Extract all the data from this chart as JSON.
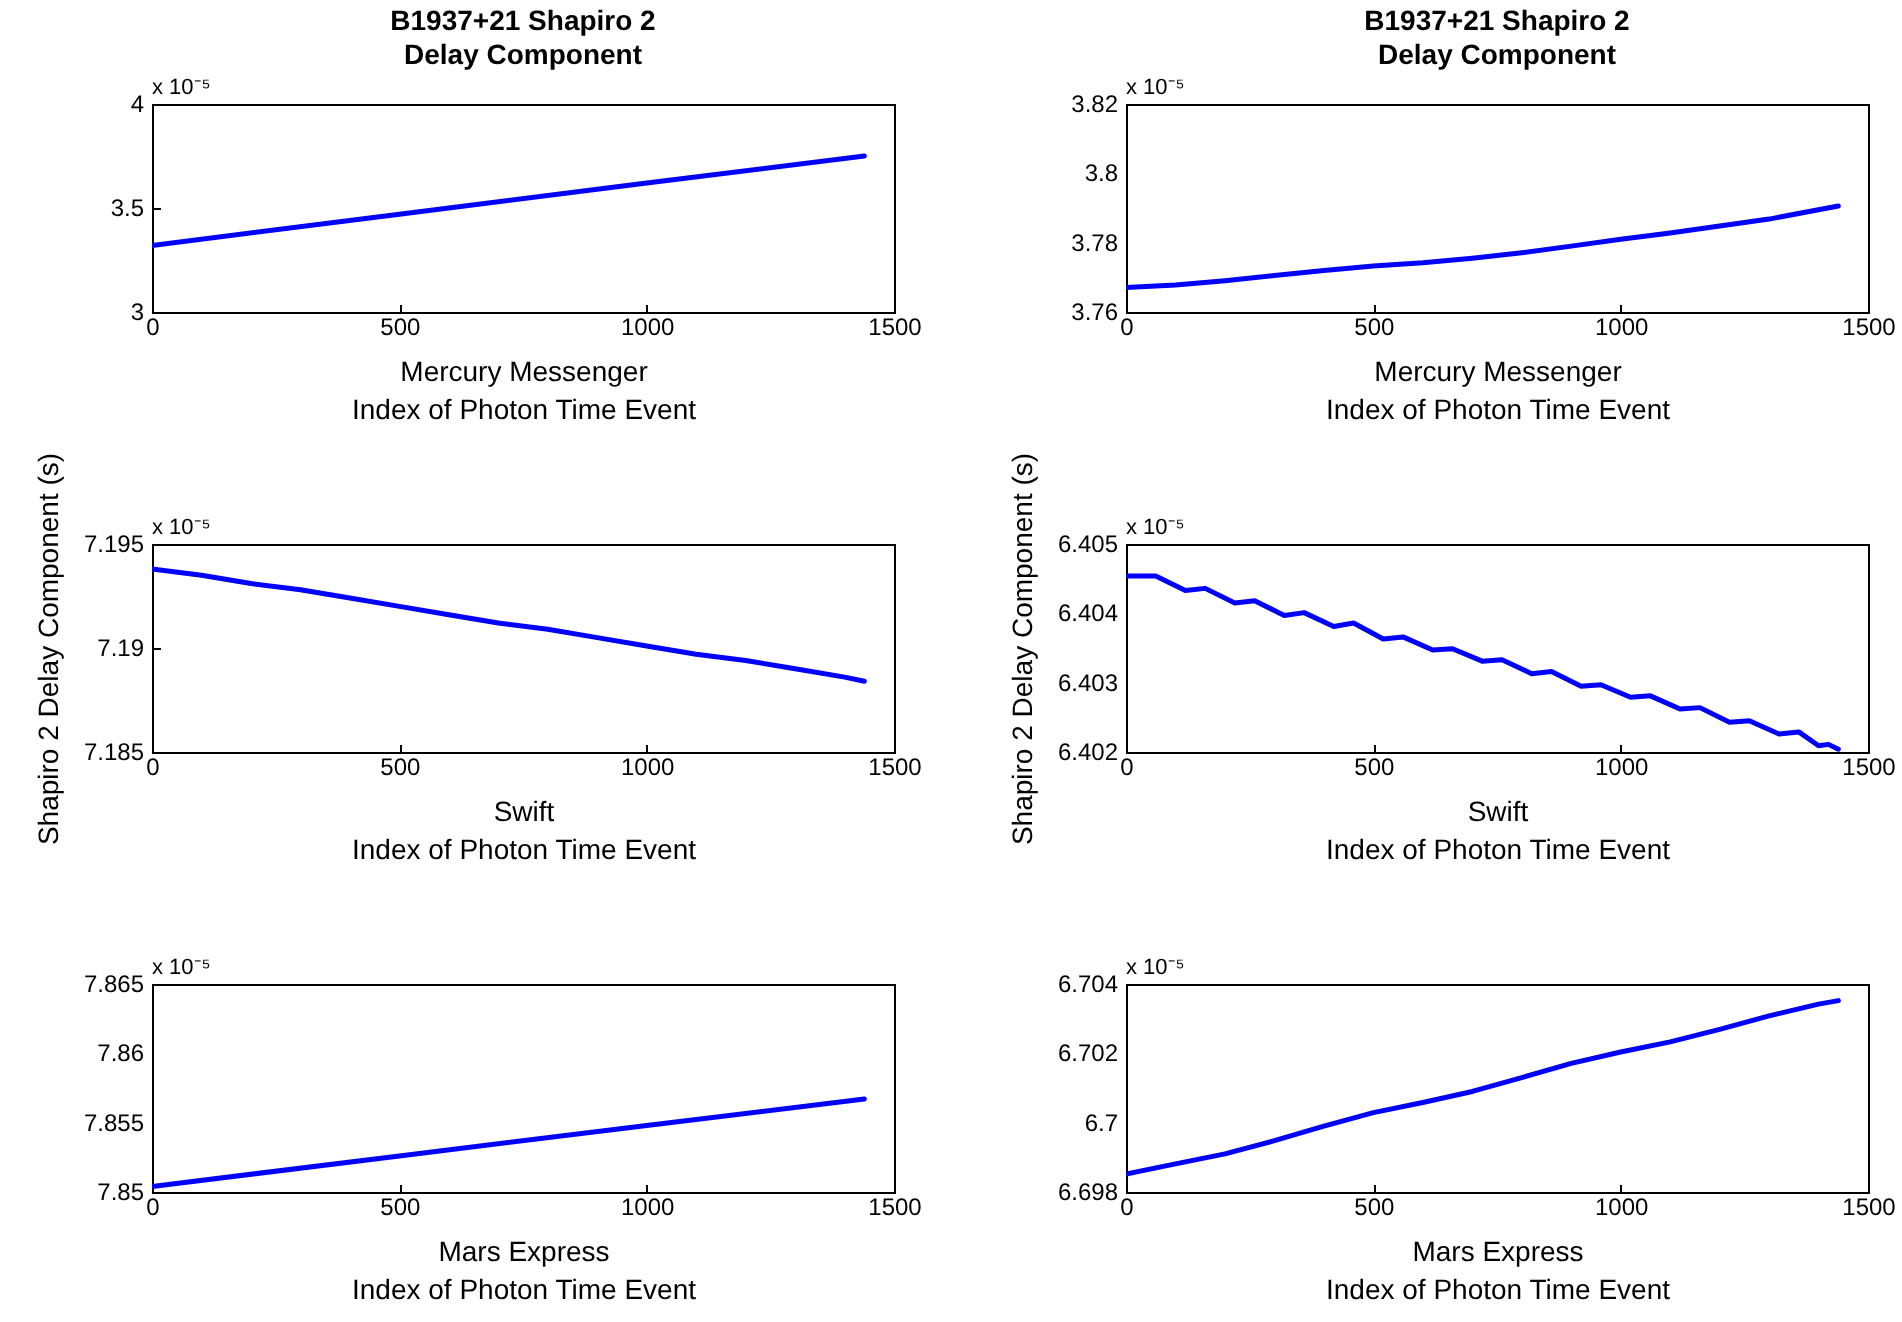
{
  "chart_data": [
    {
      "type": "line",
      "title": "B1937+21 Shapiro 2\nDelay Component",
      "xlabel": "Mercury Messenger\nIndex of Photon Time Event",
      "annotations": [
        "x 10⁻⁵"
      ],
      "color": "#0000ff",
      "xlim": [
        0,
        1500
      ],
      "xticks": [
        0,
        500,
        1000,
        1500
      ],
      "ylim": [
        3,
        4
      ],
      "yticks": [
        3,
        3.5,
        4
      ],
      "x": [
        0,
        500,
        1000,
        1440
      ],
      "values": [
        3.32,
        3.47,
        3.62,
        3.75
      ]
    },
    {
      "type": "line",
      "title": "B1937+21 Shapiro 2\nDelay Component",
      "xlabel": "Mercury Messenger\nIndex of Photon Time Event",
      "annotations": [
        "x 10⁻⁵"
      ],
      "color": "#0000ff",
      "xlim": [
        0,
        1500
      ],
      "xticks": [
        0,
        500,
        1000,
        1500
      ],
      "ylim": [
        3.76,
        3.82
      ],
      "yticks": [
        3.76,
        3.78,
        3.8,
        3.82
      ],
      "x": [
        0,
        100,
        200,
        300,
        400,
        500,
        600,
        700,
        800,
        900,
        1000,
        1100,
        1200,
        1300,
        1440
      ],
      "values": [
        3.7671,
        3.7678,
        3.769,
        3.7705,
        3.772,
        3.7733,
        3.7742,
        3.7755,
        3.7771,
        3.779,
        3.781,
        3.7828,
        3.7848,
        3.7868,
        3.7906
      ]
    },
    {
      "type": "line",
      "xlabel": "Swift\nIndex of Photon Time Event",
      "ylabel": "Shapiro 2 Delay Component (s)",
      "annotations": [
        "x 10⁻⁵"
      ],
      "color": "#0000ff",
      "xlim": [
        0,
        1500
      ],
      "xticks": [
        0,
        500,
        1000,
        1500
      ],
      "ylim": [
        7.185,
        7.195
      ],
      "yticks": [
        7.185,
        7.19,
        7.195
      ],
      "x": [
        0,
        100,
        200,
        300,
        400,
        500,
        600,
        700,
        800,
        900,
        1000,
        1100,
        1200,
        1300,
        1400,
        1440
      ],
      "values": [
        7.1938,
        7.1935,
        7.1931,
        7.1928,
        7.1924,
        7.192,
        7.1916,
        7.1912,
        7.1909,
        7.1905,
        7.1901,
        7.1897,
        7.1894,
        7.189,
        7.1886,
        7.1884
      ]
    },
    {
      "type": "line",
      "xlabel": "Swift\nIndex of Photon Time Event",
      "ylabel": "Shapiro 2 Delay Component (s)",
      "annotations": [
        "x 10⁻⁵"
      ],
      "color": "#0000ff",
      "xlim": [
        0,
        1500
      ],
      "xticks": [
        0,
        500,
        1000,
        1500
      ],
      "ylim": [
        6.402,
        6.405
      ],
      "yticks": [
        6.402,
        6.403,
        6.404,
        6.405
      ],
      "x": [
        0,
        60,
        120,
        160,
        220,
        260,
        320,
        360,
        420,
        460,
        520,
        560,
        620,
        660,
        720,
        760,
        820,
        860,
        920,
        960,
        1020,
        1060,
        1120,
        1160,
        1220,
        1260,
        1320,
        1360,
        1400,
        1420,
        1440
      ],
      "values": [
        6.40454,
        6.40454,
        6.40433,
        6.40436,
        6.40415,
        6.40418,
        6.40397,
        6.40401,
        6.40381,
        6.40386,
        6.40363,
        6.40366,
        6.40347,
        6.40349,
        6.40331,
        6.40333,
        6.40313,
        6.40316,
        6.40295,
        6.40297,
        6.40279,
        6.40281,
        6.40262,
        6.40264,
        6.40243,
        6.40245,
        6.40226,
        6.40229,
        6.40209,
        6.40211,
        6.40204
      ]
    },
    {
      "type": "line",
      "xlabel": "Mars Express\nIndex of Photon Time Event",
      "annotations": [
        "x 10⁻⁵"
      ],
      "color": "#0000ff",
      "xlim": [
        0,
        1500
      ],
      "xticks": [
        0,
        500,
        1000,
        1500
      ],
      "ylim": [
        7.85,
        7.865
      ],
      "yticks": [
        7.85,
        7.855,
        7.86,
        7.865
      ],
      "x": [
        0,
        500,
        1000,
        1440
      ],
      "values": [
        7.8504,
        7.8526,
        7.8548,
        7.8567
      ]
    },
    {
      "type": "line",
      "xlabel": "Mars Express\nIndex of Photon Time Event",
      "annotations": [
        "x 10⁻⁵"
      ],
      "color": "#0000ff",
      "xlim": [
        0,
        1500
      ],
      "xticks": [
        0,
        500,
        1000,
        1500
      ],
      "ylim": [
        6.698,
        6.704
      ],
      "yticks": [
        6.698,
        6.7,
        6.702,
        6.704
      ],
      "x": [
        0,
        100,
        200,
        300,
        400,
        500,
        600,
        700,
        800,
        900,
        1000,
        1100,
        1200,
        1300,
        1400,
        1440
      ],
      "values": [
        6.69852,
        6.69881,
        6.6991,
        6.69948,
        6.6999,
        6.70029,
        6.70058,
        6.7009,
        6.7013,
        6.70171,
        6.70204,
        6.70233,
        6.70269,
        6.70308,
        6.70342,
        6.70352
      ]
    }
  ]
}
